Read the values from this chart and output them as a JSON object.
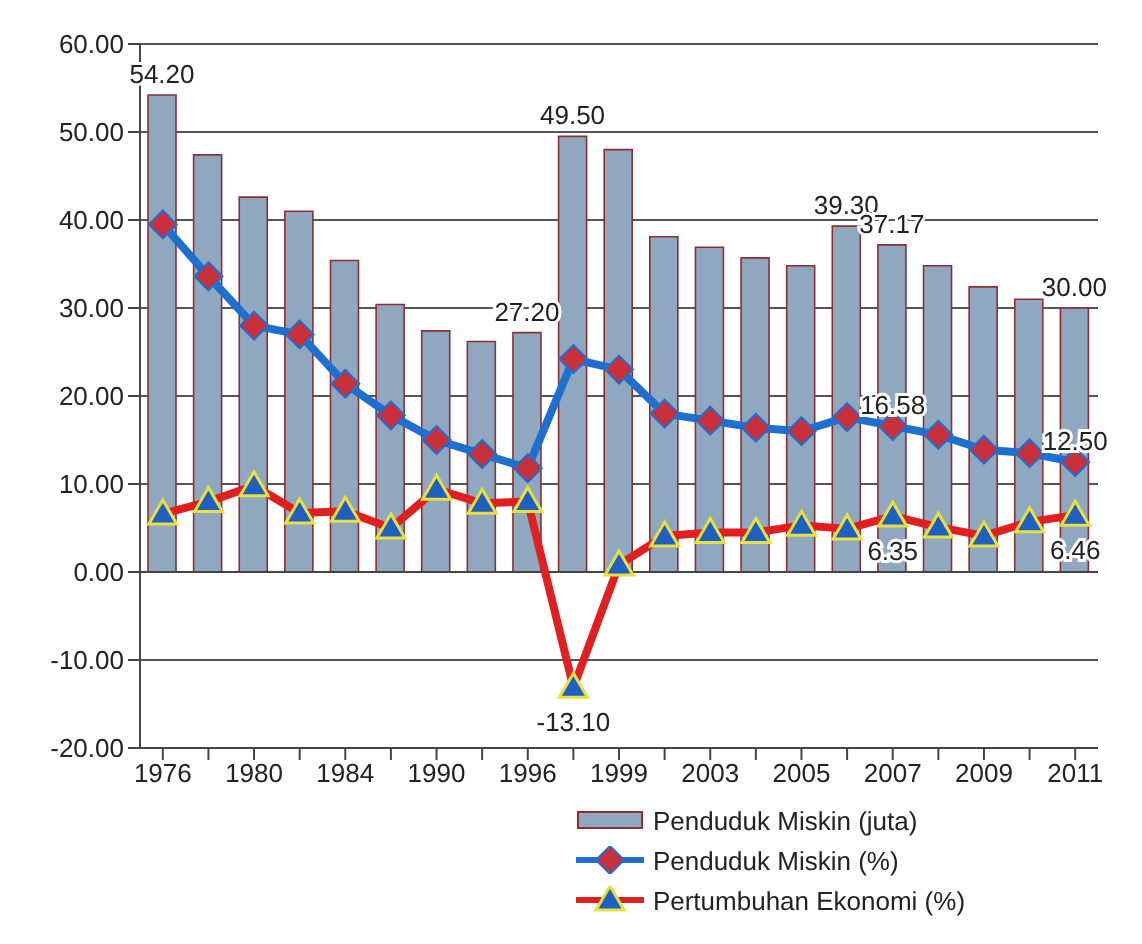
{
  "chart_data": {
    "type": "bar",
    "categories": [
      "1976",
      null,
      "1980",
      null,
      "1984",
      null,
      "1990",
      null,
      "1996",
      null,
      "1999",
      null,
      "2003",
      null,
      "2005",
      null,
      "2007",
      null,
      "2009",
      null,
      "2011"
    ],
    "series": [
      {
        "name": "Penduduk Miskin (juta)",
        "color": "#8fa8c0",
        "values": [
          54.2,
          47.4,
          42.6,
          41.0,
          35.4,
          30.4,
          27.4,
          26.2,
          27.2,
          49.5,
          48.0,
          38.1,
          36.9,
          35.7,
          34.8,
          39.3,
          37.17,
          34.8,
          32.4,
          31.0,
          30.0
        ],
        "value_labels": [
          "54.20",
          null,
          null,
          null,
          null,
          null,
          null,
          null,
          "27.20",
          "49.50",
          null,
          null,
          null,
          null,
          null,
          "39.30",
          "37.17",
          null,
          null,
          null,
          "30.00"
        ]
      },
      {
        "name": "Penduduk Miskin (%)",
        "type": "line",
        "color": "#1f6fd0",
        "marker": "diamond",
        "values": [
          39.5,
          33.6,
          28.0,
          27.0,
          21.4,
          17.8,
          15.0,
          13.4,
          11.8,
          24.2,
          23.0,
          18.0,
          17.2,
          16.4,
          16.0,
          17.6,
          16.58,
          15.6,
          13.9,
          13.5,
          12.5
        ],
        "value_labels": [
          null,
          null,
          null,
          null,
          null,
          null,
          null,
          null,
          null,
          null,
          null,
          null,
          null,
          null,
          null,
          null,
          "16.58",
          null,
          null,
          null,
          "12.50"
        ]
      },
      {
        "name": "Pertumbuhan Ekonomi (%)",
        "type": "line",
        "color": "#e02020",
        "marker": "triangle",
        "values": [
          6.6,
          8.0,
          9.8,
          6.7,
          6.9,
          5.0,
          9.4,
          7.8,
          8.0,
          -13.1,
          0.8,
          4.1,
          4.5,
          4.5,
          5.3,
          4.9,
          6.35,
          5.1,
          4.1,
          5.7,
          6.46
        ],
        "value_labels": [
          null,
          null,
          null,
          null,
          null,
          null,
          null,
          null,
          null,
          "-13.10",
          null,
          null,
          null,
          null,
          null,
          null,
          "6.35",
          null,
          null,
          null,
          "6.46"
        ]
      }
    ],
    "ylim": [
      -20,
      60
    ],
    "yticks": [
      {
        "value": -20,
        "label": "-20.00"
      },
      {
        "value": -10,
        "label": "-10.00"
      },
      {
        "value": 0,
        "label": "0.00"
      },
      {
        "value": 10,
        "label": "10.00"
      },
      {
        "value": 20,
        "label": "20.00"
      },
      {
        "value": 30,
        "label": "30.00"
      },
      {
        "value": 40,
        "label": "40.00"
      },
      {
        "value": 50,
        "label": "50.00"
      },
      {
        "value": 60,
        "label": "60.00"
      }
    ],
    "grid": "y",
    "legend": "bottom"
  }
}
